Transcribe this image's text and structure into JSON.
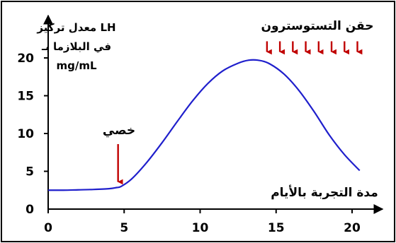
{
  "colors": {
    "curve": "#1f1fcc",
    "arrows": "#c00000",
    "axis": "#000000",
    "frame": "#000000"
  },
  "chart_data": {
    "type": "line",
    "ylabel_lines": [
      "معدل تركيز LH",
      "في البلازما بـ",
      "mg/mL"
    ],
    "xlabel": "مدة التجربة بالأيام",
    "xlim": [
      0,
      21.5
    ],
    "ylim": [
      0,
      22
    ],
    "x_ticks": [
      0,
      5,
      10,
      15,
      20
    ],
    "y_ticks": [
      0,
      5,
      10,
      15,
      20
    ],
    "series": [
      {
        "x": [
          0,
          1,
          2,
          3,
          4,
          4.5,
          4.8,
          5.5,
          6.5,
          7.5,
          8.5,
          9.5,
          10.5,
          11.5,
          12.5,
          13.2,
          13.8,
          14.5,
          15.5,
          16.5,
          17.5,
          18.5,
          19.5,
          20.5
        ],
        "values": [
          2.5,
          2.5,
          2.55,
          2.6,
          2.7,
          2.85,
          3.0,
          4.0,
          6.2,
          8.8,
          11.6,
          14.3,
          16.6,
          18.3,
          19.3,
          19.7,
          19.7,
          19.3,
          17.9,
          15.7,
          12.9,
          9.8,
          7.2,
          5.1
        ]
      }
    ],
    "annotations": [
      {
        "text": "خصي",
        "x": 4.6,
        "arrow_from_y": 8.6,
        "arrow_to_y": 3.6
      },
      {
        "text": "حقن التستوسترون",
        "arrow_xs": [
          14.4,
          15.25,
          16.1,
          16.95,
          17.8,
          18.65,
          19.5,
          20.35
        ],
        "arrow_from_y": 22.2,
        "arrow_to_y": 20.8
      }
    ]
  }
}
